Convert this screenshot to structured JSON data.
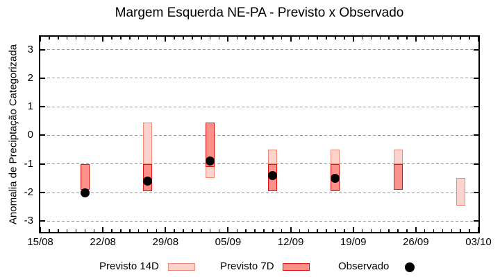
{
  "chart_data": {
    "type": "bar",
    "subtype": "forecast-range-bars-with-observed-points",
    "title": "Margem Esquerda NE-PA - Previsto x Observado",
    "ylabel": "Anomalia de Preciptação Categorizada",
    "xlabel": "",
    "ylim": [
      -3.38,
      3.45
    ],
    "x_days_range": [
      0,
      49
    ],
    "x_ticks": [
      {
        "day": 0,
        "label": "15/08"
      },
      {
        "day": 7,
        "label": "22/08"
      },
      {
        "day": 14,
        "label": "29/08"
      },
      {
        "day": 21,
        "label": "05/09"
      },
      {
        "day": 28,
        "label": "12/09"
      },
      {
        "day": 35,
        "label": "19/09"
      },
      {
        "day": 42,
        "label": "26/09"
      },
      {
        "day": 49,
        "label": "03/10"
      }
    ],
    "x_minor_tick_every_days": 1,
    "y_ticks": [
      -3,
      -2,
      -1,
      0,
      1,
      2,
      3
    ],
    "grid": {
      "horizontal_dashed": true,
      "color": "#999999"
    },
    "legend_position": "bottom",
    "legend": [
      {
        "label": "Previsto 14D",
        "marker": "box",
        "fill": "#fcd3cd",
        "border": "#f08878"
      },
      {
        "label": "Previsto 7D",
        "marker": "box",
        "fill": "#fa918a",
        "border": "#e8100c"
      },
      {
        "label": "Observado",
        "marker": "dot",
        "fill": "#000000"
      }
    ],
    "points": [
      {
        "date": "20/08",
        "day": 5,
        "previsto_14d": null,
        "previsto_7d": [
          -1.9,
          -1.0
        ],
        "observado": -2.0
      },
      {
        "date": "27/08",
        "day": 12,
        "previsto_14d": [
          -1.0,
          0.45
        ],
        "previsto_7d": [
          -1.95,
          -1.0
        ],
        "observado": -1.6
      },
      {
        "date": "03/09",
        "day": 19,
        "previsto_14d": [
          -1.5,
          0.45
        ],
        "previsto_7d": [
          -1.1,
          0.45
        ],
        "observado": -0.9
      },
      {
        "date": "10/09",
        "day": 26,
        "previsto_14d": [
          -1.0,
          -0.5
        ],
        "previsto_7d": [
          -1.95,
          -1.0
        ],
        "observado": -1.4
      },
      {
        "date": "17/09",
        "day": 33,
        "previsto_14d": [
          -1.0,
          -0.5
        ],
        "previsto_7d": [
          -1.95,
          -1.0
        ],
        "observado": -1.5
      },
      {
        "date": "24/09",
        "day": 40,
        "previsto_14d": [
          -1.0,
          -0.5
        ],
        "previsto_7d": [
          -1.9,
          -1.0
        ],
        "observado": null
      },
      {
        "date": "01/10",
        "day": 47,
        "previsto_14d": [
          -2.45,
          -1.5
        ],
        "previsto_7d": null,
        "observado": null
      }
    ]
  }
}
